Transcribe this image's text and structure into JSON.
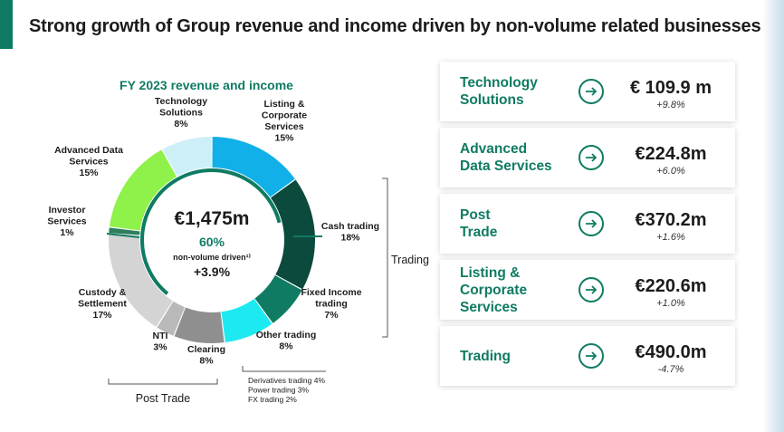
{
  "page": {
    "title": "Strong growth of Group revenue and income driven by non-volume related businesses"
  },
  "chart_data": {
    "type": "pie",
    "title": "FY 2023 revenue and income",
    "center": {
      "amount": "€1,475m",
      "share": "60%",
      "note": "non-volume driven¹⁾",
      "growth": "+3.9%"
    },
    "segments": [
      {
        "name": "Listing & Corporate Services",
        "lines": [
          "Listing &",
          "Corporate",
          "Services"
        ],
        "value": 15,
        "label": "15%",
        "color": "#12b0e8"
      },
      {
        "name": "Cash trading",
        "lines": [
          "Cash trading"
        ],
        "value": 18,
        "label": "18%",
        "color": "#0c4a3e"
      },
      {
        "name": "Fixed Income trading",
        "lines": [
          "Fixed Income",
          "trading"
        ],
        "value": 7,
        "label": "7%",
        "color": "#0f7b63"
      },
      {
        "name": "Other trading",
        "lines": [
          "Other trading"
        ],
        "value": 8,
        "label": "8%",
        "color": "#1de9f0"
      },
      {
        "name": "Clearing",
        "lines": [
          "Clearing"
        ],
        "value": 8,
        "label": "8%",
        "color": "#8f8f8f"
      },
      {
        "name": "NTI",
        "lines": [
          "NTI"
        ],
        "value": 3,
        "label": "3%",
        "color": "#b9b9b9"
      },
      {
        "name": "Custody & Settlement",
        "lines": [
          "Custody &",
          "Settlement"
        ],
        "value": 17,
        "label": "17%",
        "color": "#d4d4d4"
      },
      {
        "name": "Investor Services",
        "lines": [
          "Investor",
          "Services"
        ],
        "value": 1,
        "label": "1%",
        "color": "#2e7d5b"
      },
      {
        "name": "Advanced Data Services",
        "lines": [
          "Advanced Data",
          "Services"
        ],
        "value": 15,
        "label": "15%",
        "color": "#8ef24a"
      },
      {
        "name": "Technology Solutions",
        "lines": [
          "Technology",
          "Solutions"
        ],
        "value": 8,
        "label": "8%",
        "color": "#cdeff8"
      }
    ],
    "groups": {
      "trading": "Trading",
      "post_trade": "Post Trade"
    },
    "other_trading_detail": [
      "Derivatives trading 4%",
      "Power trading 3%",
      "FX trading 2%"
    ]
  },
  "cards": [
    {
      "name": "Technology Solutions",
      "lines": [
        "Technology",
        "Solutions"
      ],
      "value": "€ 109.9 m",
      "change": "+9.8%",
      "icon": "arrow-right-circle-icon"
    },
    {
      "name": "Advanced Data Services",
      "lines": [
        "Advanced",
        "Data Services"
      ],
      "value": "€224.8m",
      "change": "+6.0%",
      "icon": "arrow-right-circle-icon"
    },
    {
      "name": "Post Trade",
      "lines": [
        "Post",
        "Trade"
      ],
      "value": "€370.2m",
      "change": "+1.6%",
      "icon": "arrow-right-circle-icon"
    },
    {
      "name": "Listing & Corporate Services",
      "lines": [
        "Listing &",
        "Corporate",
        "Services"
      ],
      "value": "€220.6m",
      "change": "+1.0%",
      "icon": "arrow-right-circle-icon"
    },
    {
      "name": "Trading",
      "lines": [
        "Trading"
      ],
      "value": "€490.0m",
      "change": "-4.7%",
      "icon": "arrow-right-circle-icon"
    }
  ],
  "colors": {
    "accent": "#0f7b63",
    "text": "#1c1c1c"
  }
}
